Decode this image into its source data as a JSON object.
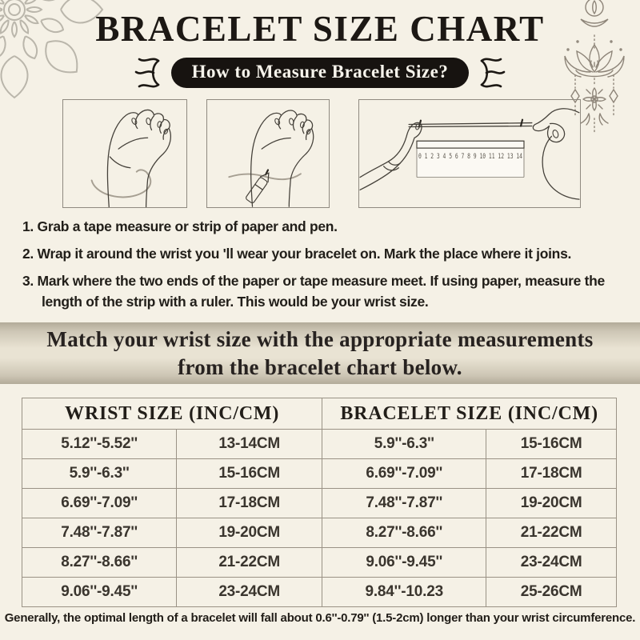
{
  "header": {
    "title": "BRACELET SIZE CHART",
    "badge": "How to Measure Bracelet Size?"
  },
  "steps": [
    "1. Grab a tape measure or strip of paper and pen.",
    "2. Wrap it around the wrist you 'll wear your bracelet on. Mark the place where it joins.",
    "3. Mark where the two ends of the paper or tape measure meet. If using paper, measure the length of the strip with a ruler. This would be your wrist size."
  ],
  "banner": {
    "line1": "Match your wrist size with the appropriate measurements",
    "line2": "from the bracelet chart below."
  },
  "size_table": {
    "headers": [
      "WRIST SIZE (INC/CM)",
      "BRACELET SIZE  (INC/CM)"
    ],
    "rows": [
      [
        "5.12''-5.52''",
        "13-14CM",
        "5.9''-6.3''",
        "15-16CM"
      ],
      [
        "5.9''-6.3''",
        "15-16CM",
        "6.69''-7.09''",
        "17-18CM"
      ],
      [
        "6.69''-7.09''",
        "17-18CM",
        "7.48''-7.87''",
        "19-20CM"
      ],
      [
        "7.48''-7.87''",
        "19-20CM",
        "8.27''-8.66''",
        "21-22CM"
      ],
      [
        "8.27''-8.66''",
        "21-22CM",
        "9.06''-9.45''",
        "23-24CM"
      ],
      [
        "9.06''-9.45''",
        "23-24CM",
        "9.84''-10.23",
        "25-26CM"
      ]
    ]
  },
  "footer": {
    "note": "Generally, the optimal length of a bracelet will fall about 0.6''-0.79'' (1.5-2cm) longer than your wrist circumference."
  },
  "illustrations": {
    "ruler_numbers": "0 1 2 3 4 5 6 7 8 9 10 11 12 13 14"
  },
  "colors": {
    "bg": "#f5f1e6",
    "ink": "#1c1814",
    "badge-bg": "#171310",
    "badge-text": "#f7f4ec",
    "banner-mid": "#e9e3d3",
    "banner-edge": "#b3ab99",
    "border": "#9a9285",
    "decor": "#8d8478",
    "mandala": "#bab6ab"
  }
}
